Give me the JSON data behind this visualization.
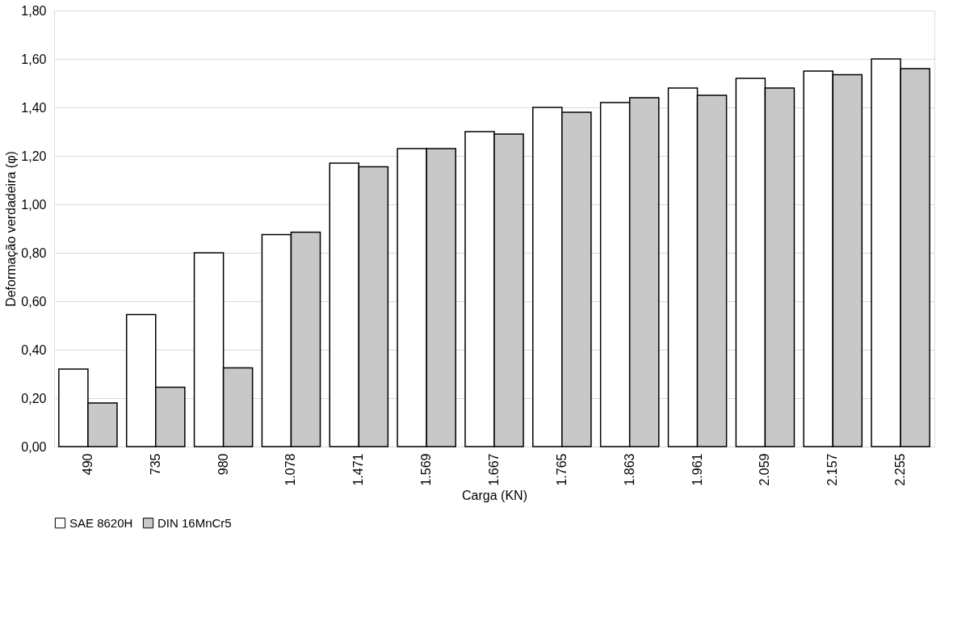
{
  "chart_data": {
    "type": "bar",
    "xlabel": "Carga (KN)",
    "ylabel": "Deformação verdadeira (φ)",
    "categories": [
      "490",
      "735",
      "980",
      "1.078",
      "1.471",
      "1.569",
      "1.667",
      "1.765",
      "1.863",
      "1.961",
      "2.059",
      "2.157",
      "2.255"
    ],
    "series": [
      {
        "name": "SAE 8620H",
        "color": "#ffffff",
        "values": [
          0.32,
          0.545,
          0.8,
          0.875,
          1.17,
          1.23,
          1.3,
          1.4,
          1.42,
          1.48,
          1.52,
          1.55,
          1.6
        ]
      },
      {
        "name": "DIN 16MnCr5",
        "color": "#c8c8c8",
        "values": [
          0.18,
          0.245,
          0.325,
          0.885,
          1.155,
          1.23,
          1.29,
          1.38,
          1.44,
          1.45,
          1.48,
          1.535,
          1.56
        ]
      }
    ],
    "ylim": [
      0,
      1.8
    ],
    "yticks": [
      {
        "value": 0,
        "label": "0,00"
      },
      {
        "value": 0.2,
        "label": "0,20"
      },
      {
        "value": 0.4,
        "label": "0,40"
      },
      {
        "value": 0.6,
        "label": "0,60"
      },
      {
        "value": 0.8,
        "label": "0,80"
      },
      {
        "value": 1.0,
        "label": "1,00"
      },
      {
        "value": 1.2,
        "label": "1,20"
      },
      {
        "value": 1.4,
        "label": "1,40"
      },
      {
        "value": 1.6,
        "label": "1,60"
      },
      {
        "value": 1.8,
        "label": "1,80"
      }
    ],
    "grid": "y",
    "legend": "bottom"
  }
}
